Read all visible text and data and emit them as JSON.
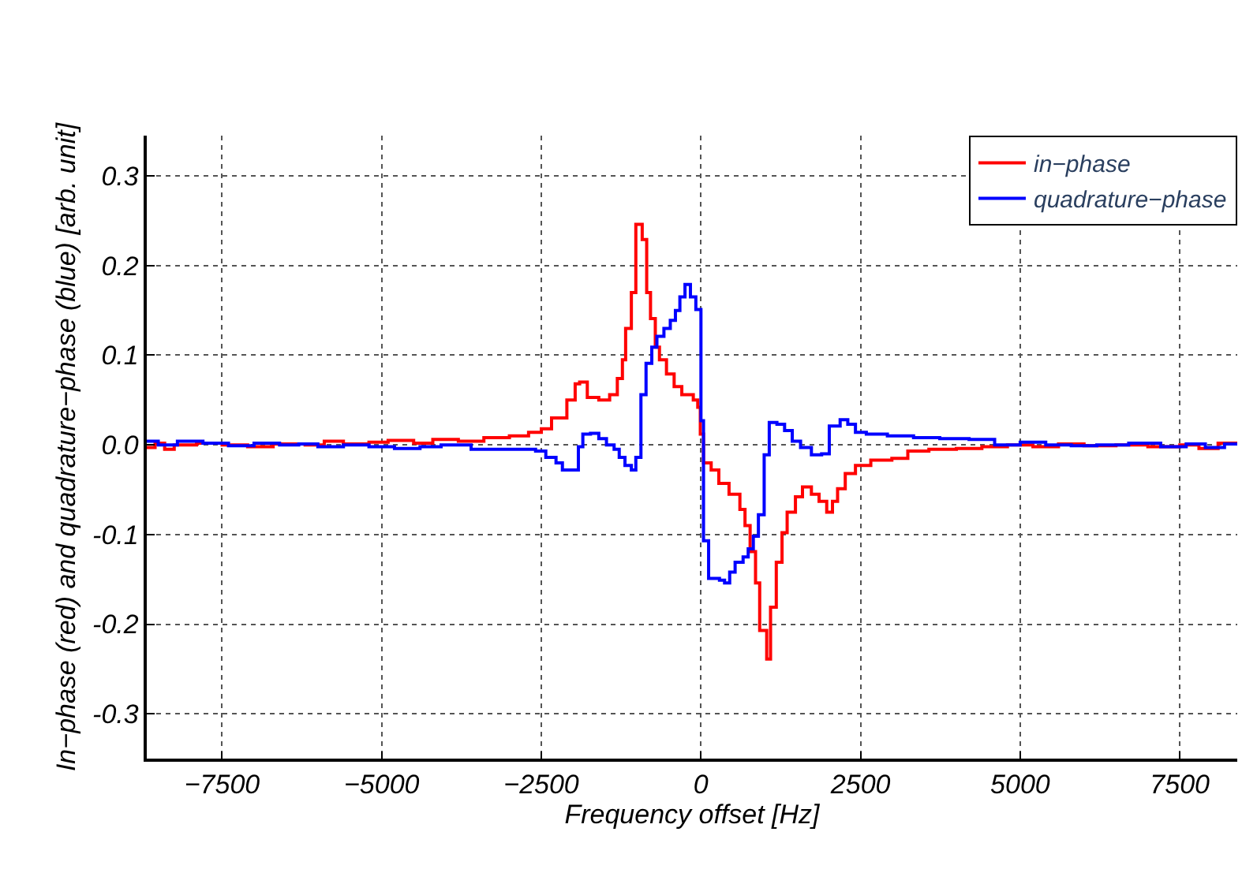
{
  "chart_data": {
    "type": "step",
    "xlabel": "Frequency offset [Hz]",
    "ylabel": "In−phase (red) and quadrature−phase (blue) [arb. unit]",
    "xlim": [
      -8680,
      8400
    ],
    "ylim": [
      -0.35,
      0.345
    ],
    "xticks": [
      {
        "value": -7500,
        "label": "−7500"
      },
      {
        "value": -5000,
        "label": "−5000"
      },
      {
        "value": -2500,
        "label": "−2500"
      },
      0,
      2500,
      5000,
      7500
    ],
    "yticks": [
      {
        "value": -0.3,
        "label": "-0.3"
      },
      {
        "value": -0.2,
        "label": "-0.2"
      },
      {
        "value": -0.1,
        "label": "-0.1"
      },
      {
        "value": 0,
        "label": "0.0"
      },
      0.1,
      0.2,
      0.3
    ],
    "grid": true,
    "legend": "top right",
    "line_style": "solid",
    "marker": "none",
    "series": [
      {
        "name": "in−phase",
        "color": "#ff0000",
        "x": [
          -8680,
          -8550,
          -8400,
          -8250,
          -7900,
          -7500,
          -7100,
          -6700,
          -6200,
          -5900,
          -5600,
          -5200,
          -4900,
          -4500,
          -4200,
          -3800,
          -3400,
          -3000,
          -2700,
          -2500,
          -2340,
          -2100,
          -1970,
          -1900,
          -1780,
          -1600,
          -1430,
          -1310,
          -1230,
          -1180,
          -1090,
          -1020,
          -920,
          -850,
          -790,
          -715,
          -650,
          -540,
          -420,
          -300,
          -120,
          -50,
          -10,
          40,
          160,
          280,
          440,
          610,
          690,
          770,
          855,
          920,
          1030,
          1090,
          1180,
          1270,
          1350,
          1480,
          1590,
          1730,
          1850,
          1970,
          2060,
          2140,
          2260,
          2420,
          2660,
          2990,
          3240,
          3570,
          4000,
          4400,
          4800,
          5200,
          5600,
          6000,
          6500,
          7000,
          7500,
          7800,
          8100,
          8400
        ],
        "values": [
          -0.003,
          0.002,
          -0.005,
          0.0,
          0.002,
          0.0,
          -0.002,
          0.001,
          0.0,
          0.004,
          0.001,
          0.003,
          0.005,
          0.002,
          0.006,
          0.004,
          0.008,
          0.01,
          0.014,
          0.018,
          0.03,
          0.05,
          0.068,
          0.07,
          0.053,
          0.05,
          0.056,
          0.074,
          0.095,
          0.13,
          0.17,
          0.246,
          0.229,
          0.17,
          0.141,
          0.109,
          0.095,
          0.079,
          0.065,
          0.056,
          0.05,
          0.042,
          0.012,
          -0.02,
          -0.028,
          -0.043,
          -0.055,
          -0.072,
          -0.09,
          -0.119,
          -0.154,
          -0.207,
          -0.239,
          -0.181,
          -0.131,
          -0.098,
          -0.075,
          -0.058,
          -0.047,
          -0.055,
          -0.063,
          -0.075,
          -0.063,
          -0.049,
          -0.032,
          -0.023,
          -0.017,
          -0.015,
          -0.007,
          -0.005,
          -0.004,
          -0.002,
          0.0,
          -0.002,
          0.001,
          -0.001,
          0.0,
          -0.002,
          0.0,
          -0.004,
          0.002,
          0.0
        ]
      },
      {
        "name": "quadrature−phase",
        "color": "#0000ff",
        "x": [
          -8680,
          -8500,
          -8200,
          -7800,
          -7400,
          -7000,
          -6600,
          -6300,
          -6000,
          -5600,
          -5200,
          -4800,
          -4400,
          -4070,
          -3600,
          -3000,
          -2590,
          -2430,
          -2270,
          -2170,
          -1970,
          -1920,
          -1850,
          -1730,
          -1600,
          -1480,
          -1360,
          -1280,
          -1190,
          -1090,
          -1020,
          -940,
          -860,
          -770,
          -690,
          -580,
          -480,
          -400,
          -330,
          -250,
          -165,
          -80,
          0,
          40,
          120,
          290,
          370,
          450,
          535,
          660,
          740,
          820,
          900,
          990,
          1070,
          1190,
          1310,
          1430,
          1560,
          1730,
          1890,
          2010,
          2180,
          2300,
          2420,
          2590,
          2920,
          3330,
          3740,
          4200,
          4600,
          5000,
          5400,
          5800,
          6200,
          6700,
          7200,
          7600,
          7900,
          8200,
          8400
        ],
        "values": [
          0.004,
          0.0,
          0.004,
          0.002,
          -0.001,
          0.002,
          0.0,
          0.001,
          -0.002,
          0.0,
          -0.002,
          -0.004,
          -0.002,
          0.0,
          -0.005,
          -0.005,
          -0.007,
          -0.014,
          -0.02,
          -0.028,
          -0.028,
          -0.002,
          0.012,
          0.013,
          0.007,
          0.0,
          -0.005,
          -0.014,
          -0.023,
          -0.028,
          -0.014,
          0.056,
          0.091,
          0.109,
          0.121,
          0.13,
          0.139,
          0.15,
          0.165,
          0.179,
          0.165,
          0.151,
          0.027,
          -0.107,
          -0.149,
          -0.151,
          -0.154,
          -0.142,
          -0.131,
          -0.125,
          -0.116,
          -0.102,
          -0.078,
          -0.011,
          0.025,
          0.023,
          0.016,
          0.004,
          -0.003,
          -0.011,
          -0.01,
          0.021,
          0.028,
          0.023,
          0.014,
          0.012,
          0.01,
          0.008,
          0.007,
          0.006,
          0.0,
          0.003,
          0.0,
          -0.001,
          0.0,
          0.002,
          -0.002,
          0.001,
          -0.003,
          0.001,
          0.0
        ]
      }
    ]
  }
}
